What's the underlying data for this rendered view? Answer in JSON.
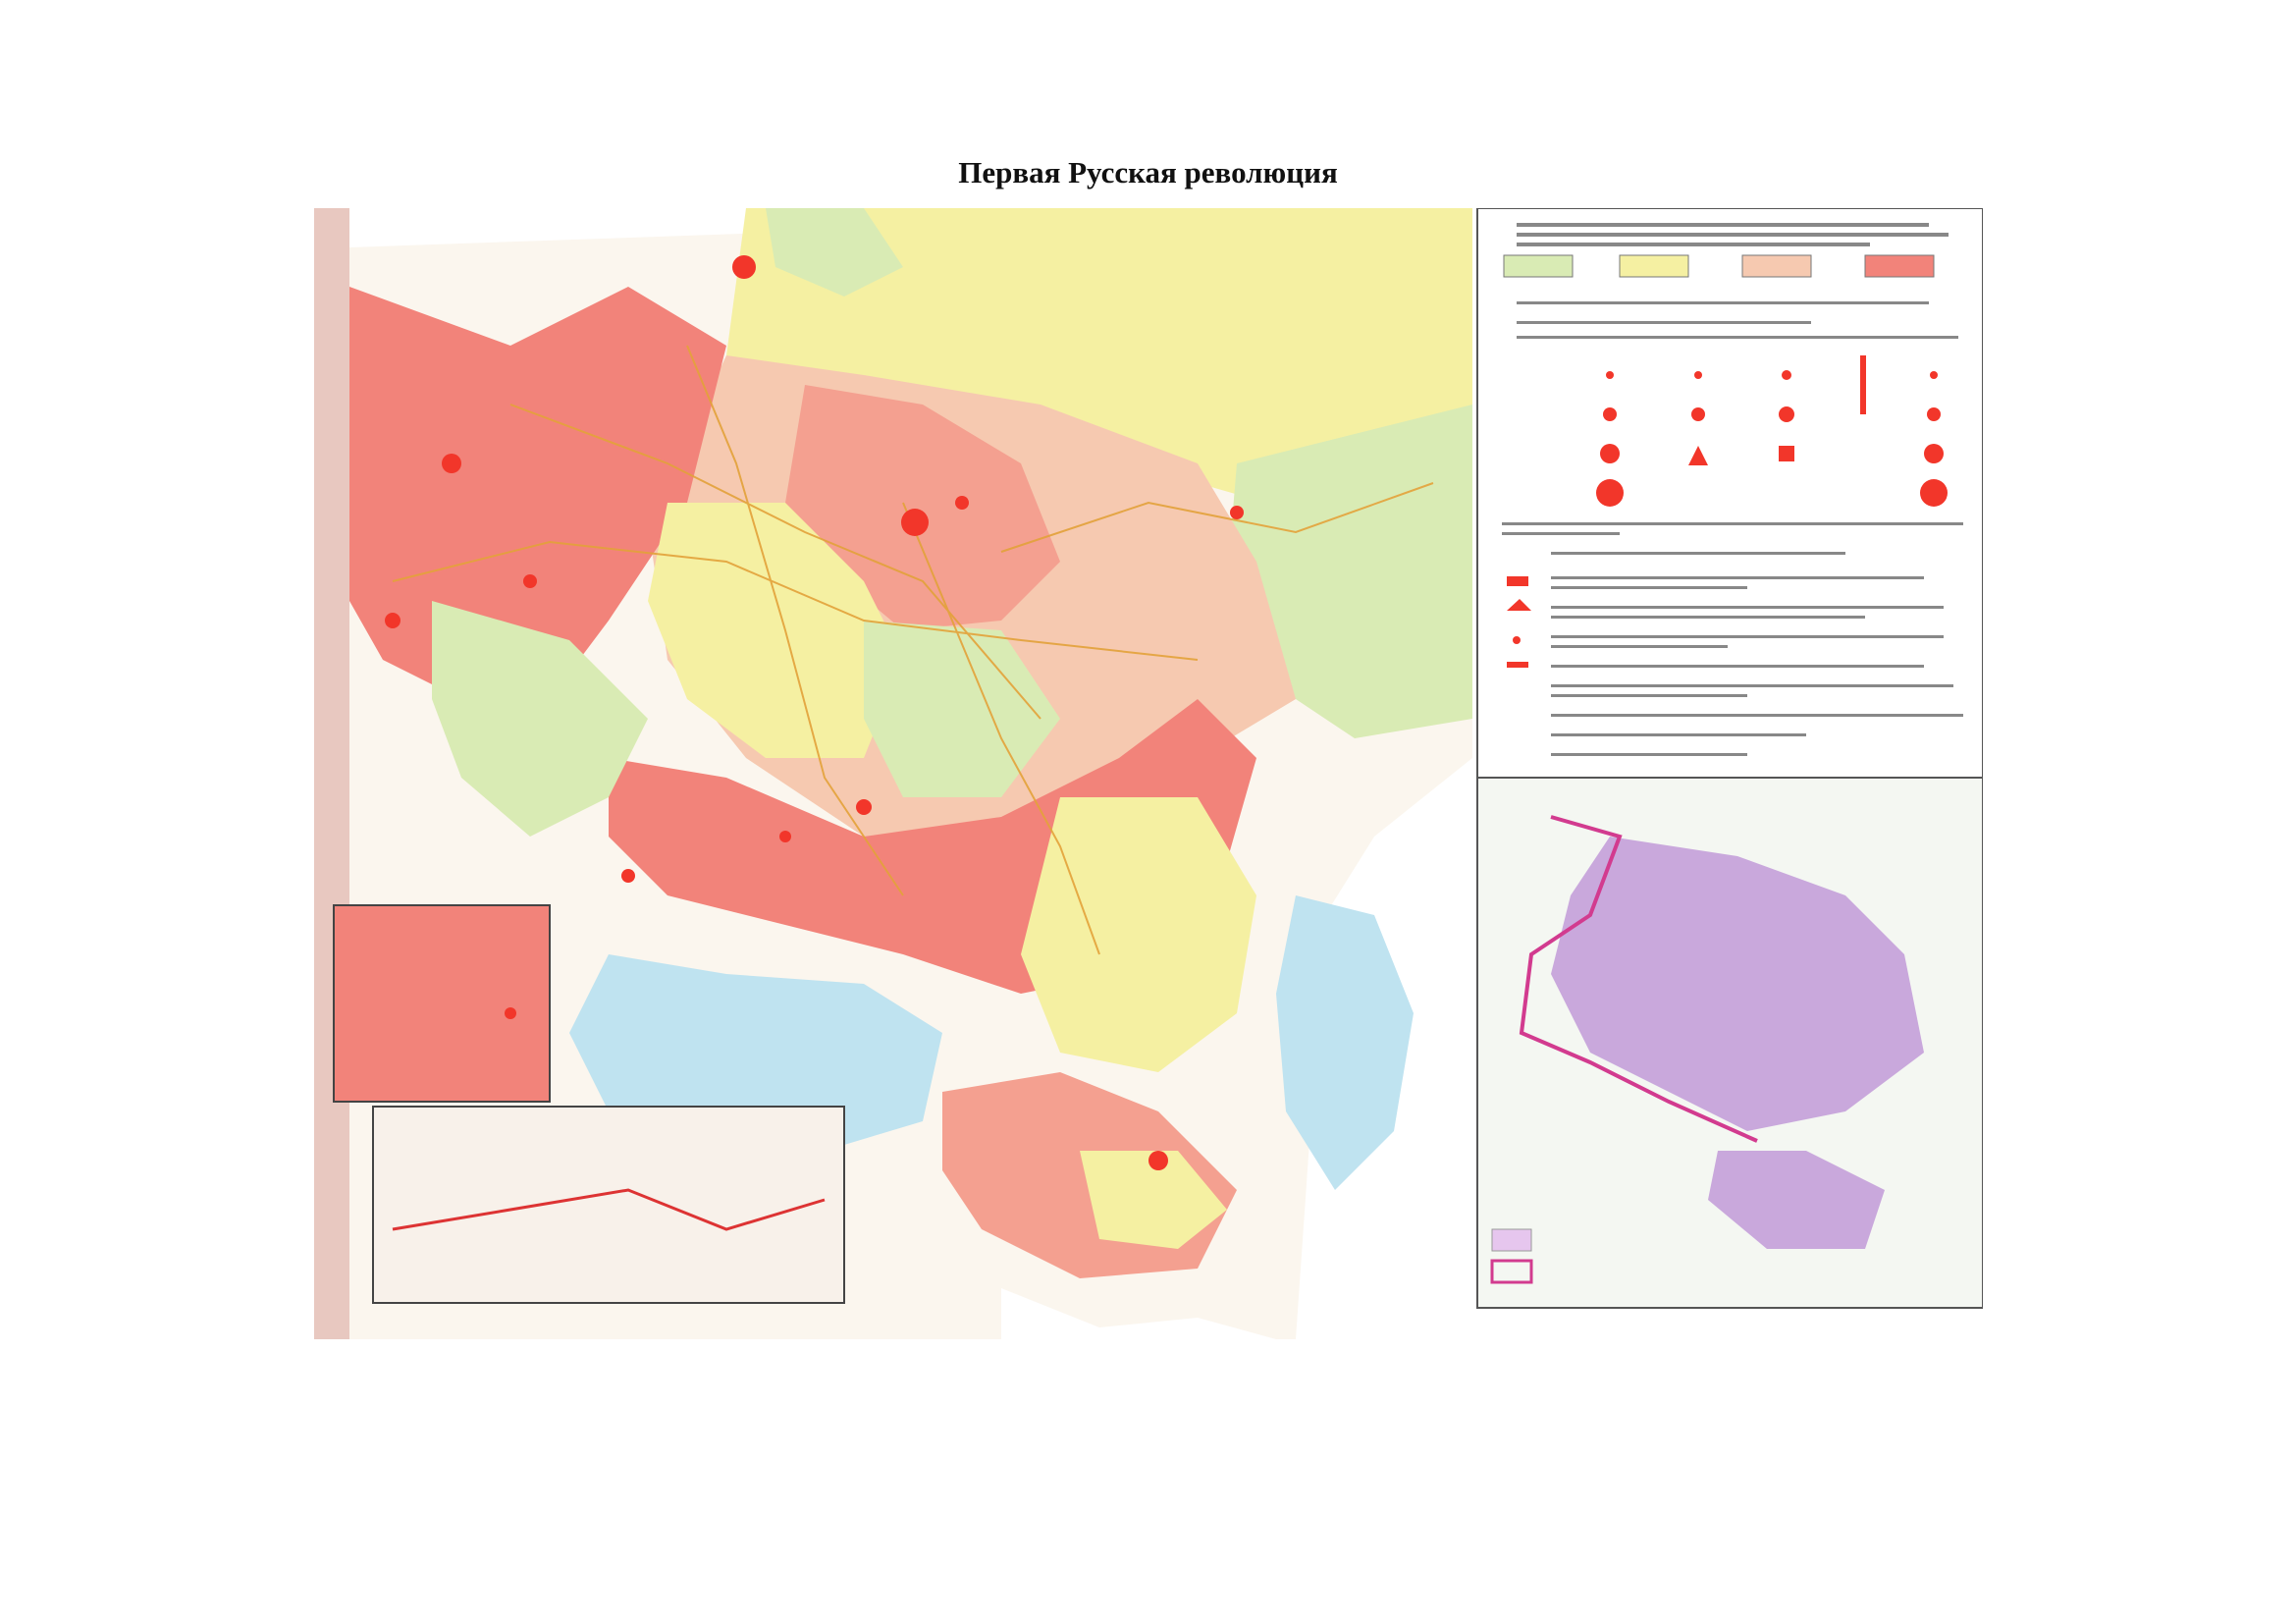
{
  "title": "Первая Русская революция",
  "map": {
    "legend_title_main": "",
    "inset_title": ""
  },
  "colors": {
    "very_light_green": "#d9ebb4",
    "light_yellow": "#f5f0a2",
    "salmon": "#f6c9b0",
    "red_region": "#f2837a",
    "water": "#bfe3f0",
    "strike_marker": "#f2362a",
    "inset_violet": "#c9a8dc",
    "inset_border": "#d23b8f"
  }
}
